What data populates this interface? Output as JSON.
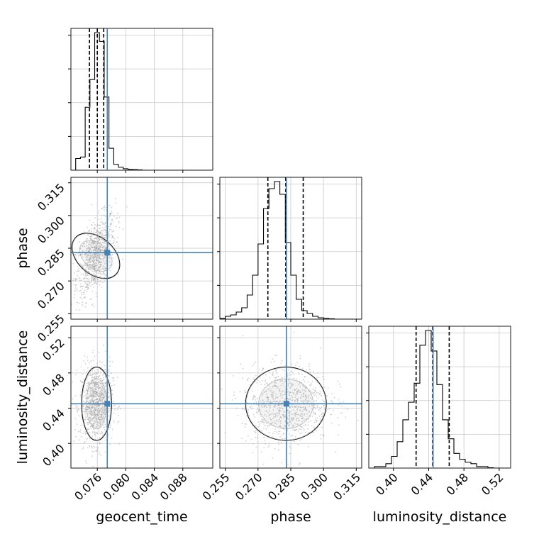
{
  "chart_data": {
    "type": "corner",
    "grid": true,
    "truth": {
      "geocent_time": 0.0774,
      "phase": 0.283,
      "luminosity_distance": 0.445
    },
    "colors": {
      "truth": "#4682b4",
      "hist": "#000000",
      "grid": "#c8c8c8",
      "points": "#9a9a9a"
    },
    "parameters": [
      {
        "name": "geocent_time",
        "xlabel": "geocent_time",
        "range": [
          0.0723,
          0.0922
        ],
        "ticks": [
          "0.076",
          "0.080",
          "0.084",
          "0.088"
        ],
        "tick_values": [
          0.076,
          0.08,
          0.084,
          0.088
        ],
        "quantiles": [
          0.0749,
          0.076,
          0.0769
        ],
        "hist_bin_width": 0.000667,
        "hist_counts": [
          0,
          0.08,
          0.09,
          0.43,
          0.62,
          0.94,
          0.88,
          0.5,
          0.15,
          0.04,
          0.02,
          0.01,
          0.005,
          0.004,
          0.002,
          0,
          0,
          0,
          0,
          0,
          0,
          0,
          0,
          0,
          0,
          0,
          0,
          0,
          0,
          0
        ]
      },
      {
        "name": "phase",
        "xlabel": "phase",
        "ylabel": "phase",
        "range": [
          0.2525,
          0.3175
        ],
        "ticks": [
          "0.255",
          "0.270",
          "0.285",
          "0.300",
          "0.315"
        ],
        "tick_values": [
          0.255,
          0.27,
          0.285,
          0.3,
          0.315
        ],
        "quantiles": [
          0.2745,
          0.2827,
          0.2907
        ],
        "hist_bin_width": 0.0025,
        "hist_counts": [
          0.005,
          0.02,
          0.03,
          0.05,
          0.08,
          0.17,
          0.31,
          0.53,
          0.78,
          0.92,
          0.97,
          0.88,
          0.54,
          0.31,
          0.14,
          0.06,
          0.04,
          0.02,
          0.01,
          0.005,
          0.002,
          0,
          0,
          0,
          0,
          0
        ]
      },
      {
        "name": "luminosity_distance",
        "xlabel": "luminosity_distance",
        "ylabel": "luminosity_distance",
        "range": [
          0.372,
          0.533
        ],
        "ticks": [
          "0.40",
          "0.44",
          "0.48",
          "0.52"
        ],
        "tick_values": [
          0.4,
          0.44,
          0.48,
          0.52
        ],
        "quantiles": [
          0.4257,
          0.4445,
          0.4633
        ],
        "hist_bin_width": 0.00644,
        "hist_counts": [
          0,
          0.01,
          0.01,
          0.03,
          0.08,
          0.18,
          0.33,
          0.45,
          0.58,
          0.84,
          0.94,
          0.8,
          0.57,
          0.33,
          0.2,
          0.1,
          0.06,
          0.04,
          0.03,
          0.01,
          0.01,
          0.002,
          0,
          0,
          0
        ]
      }
    ],
    "pairs": [
      {
        "x": "geocent_time",
        "y": "phase",
        "mean": [
          0.0758,
          0.2815
        ],
        "std": [
          0.0011,
          0.0075
        ],
        "corr": 0.55
      },
      {
        "x": "geocent_time",
        "y": "luminosity_distance",
        "mean": [
          0.0759,
          0.445
        ],
        "std": [
          0.0009,
          0.018
        ],
        "corr": 0.05
      },
      {
        "x": "phase",
        "y": "luminosity_distance",
        "mean": [
          0.2828,
          0.445
        ],
        "std": [
          0.008,
          0.018
        ],
        "corr": 0.05
      }
    ]
  }
}
